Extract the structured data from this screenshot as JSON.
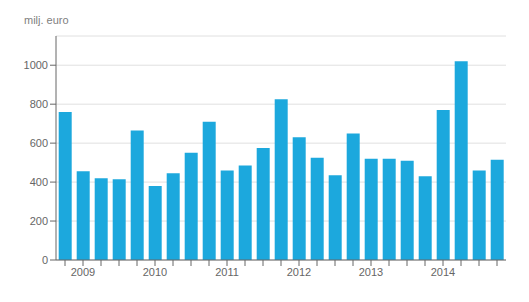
{
  "chart_data": {
    "type": "bar",
    "ylabel": "milj. euro",
    "categories": [
      null,
      "2009",
      null,
      null,
      null,
      "2010",
      null,
      null,
      null,
      "2011",
      null,
      null,
      null,
      "2012",
      null,
      null,
      null,
      "2013",
      null,
      null,
      null,
      "2014",
      null,
      null,
      null
    ],
    "values": [
      760,
      455,
      420,
      415,
      665,
      380,
      445,
      550,
      710,
      460,
      485,
      575,
      825,
      630,
      525,
      435,
      650,
      520,
      520,
      510,
      430,
      770,
      1020,
      460,
      515
    ],
    "color": "#1ca8dd",
    "ylim": [
      0,
      1150
    ],
    "yticks": [
      0,
      200,
      400,
      600,
      800,
      1000
    ],
    "grid": true
  }
}
